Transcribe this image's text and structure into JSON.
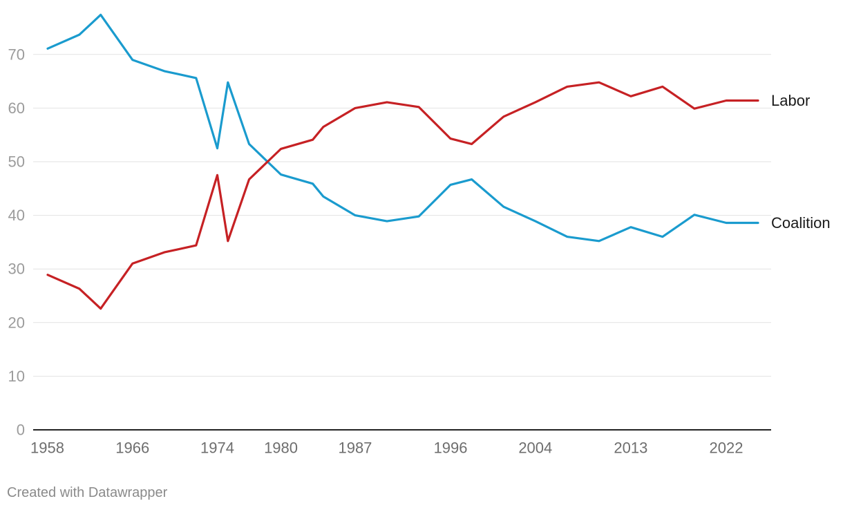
{
  "chart_data": {
    "type": "line",
    "title": "",
    "xlabel": "",
    "ylabel": "",
    "ylim": [
      0,
      77
    ],
    "x_ticks": [
      "1958",
      "1966",
      "1974",
      "1980",
      "1987",
      "1996",
      "2004",
      "2013",
      "2022"
    ],
    "y_ticks": [
      0,
      10,
      20,
      30,
      40,
      50,
      60,
      70
    ],
    "grid": true,
    "x": [
      1958,
      1961,
      1963,
      1966,
      1969,
      1972,
      1974,
      1975,
      1977,
      1980,
      1983,
      1984,
      1987,
      1990,
      1993,
      1996,
      1998,
      2001,
      2004,
      2007,
      2010,
      2013,
      2016,
      2019,
      2022,
      2025
    ],
    "series": [
      {
        "name": "Labor",
        "color": "#c62124",
        "values": [
          28.9,
          26.3,
          22.6,
          31.0,
          33.1,
          34.4,
          47.5,
          35.2,
          46.7,
          52.4,
          54.1,
          56.5,
          60.0,
          61.1,
          60.2,
          54.3,
          53.3,
          58.4,
          61.1,
          64.0,
          64.8,
          62.2,
          64.0,
          59.9,
          61.4,
          61.4
        ]
      },
      {
        "name": "Coalition",
        "color": "#1a9bce",
        "values": [
          71.1,
          73.7,
          77.4,
          69.0,
          66.9,
          65.6,
          52.5,
          64.8,
          53.3,
          47.6,
          45.9,
          43.5,
          40.0,
          38.9,
          39.8,
          45.7,
          46.7,
          41.6,
          38.9,
          36.0,
          35.2,
          37.8,
          36.0,
          40.1,
          38.6,
          38.6
        ]
      }
    ]
  },
  "footer": {
    "credit": "Created with Datawrapper"
  }
}
